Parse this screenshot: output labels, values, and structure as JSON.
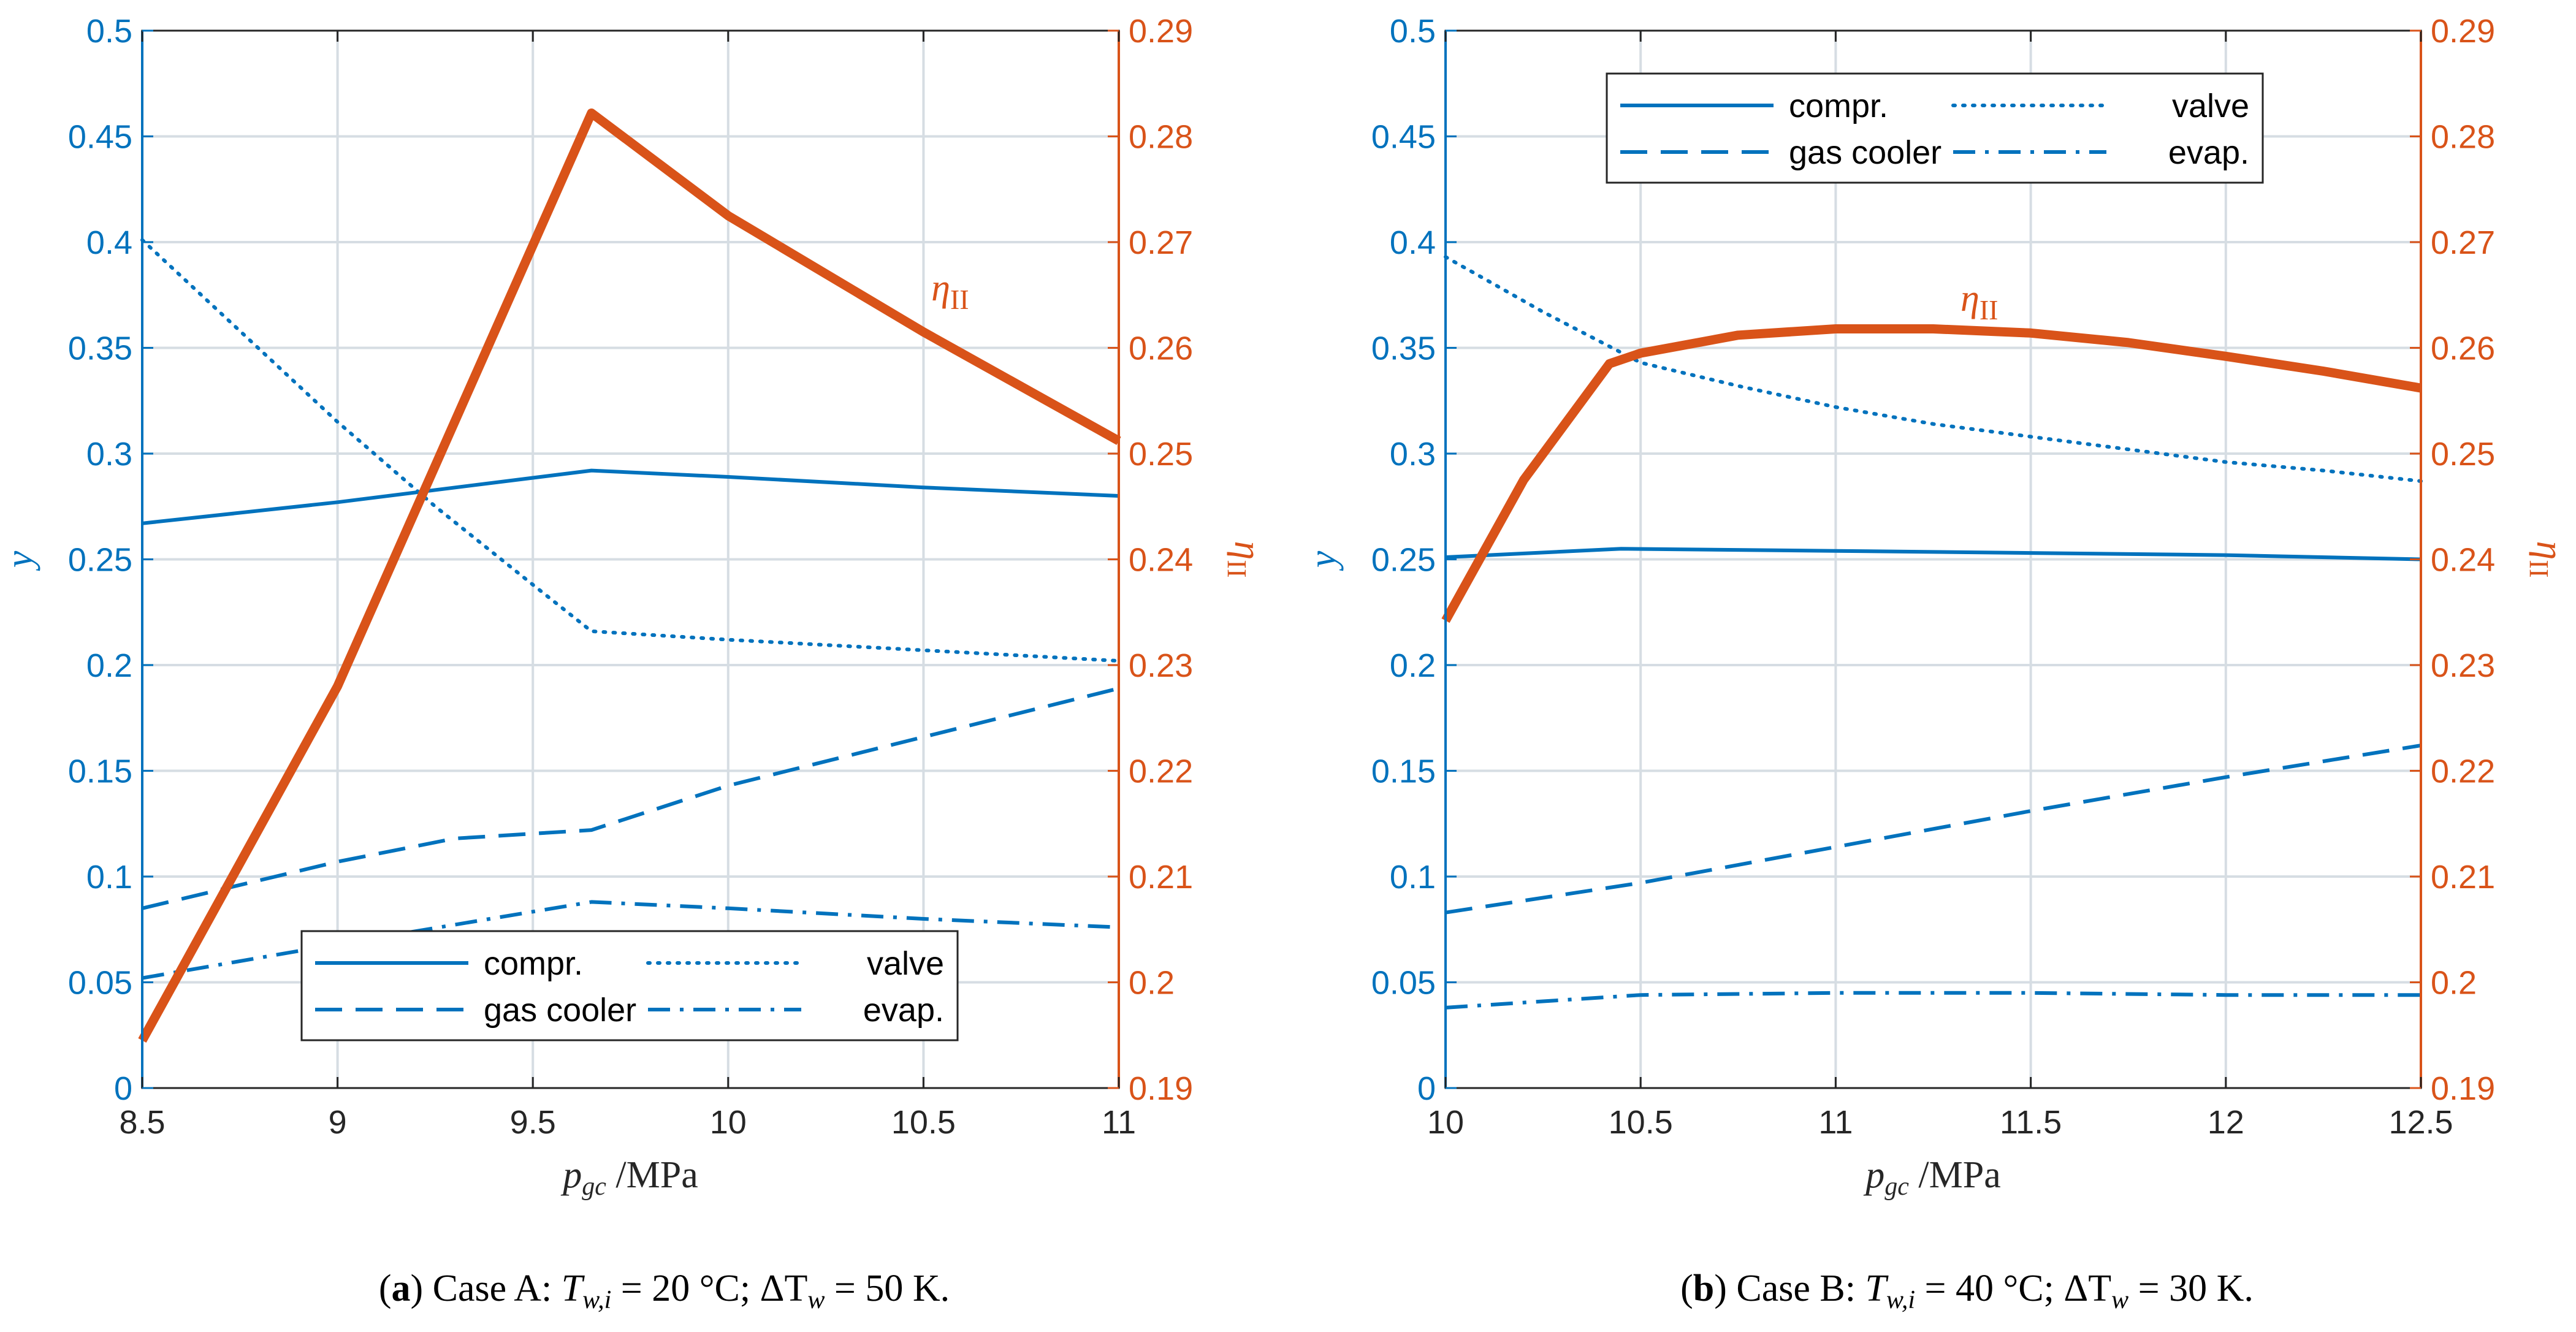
{
  "colors": {
    "left_axis": "#0072BD",
    "right_axis": "#D95319",
    "grid": "#d6dde3",
    "frame": "#000000"
  },
  "chart_data": [
    {
      "type": "line",
      "caption": {
        "letter": "(a)",
        "text": "Case A: T_{w,i} = 20 °C; ΔT_w = 50 K."
      },
      "xlabel": "p_gc /MPa",
      "ylabel_left": "y",
      "ylabel_right": "η_II",
      "xlim": [
        8.5,
        11
      ],
      "xticks": [
        8.5,
        9,
        9.5,
        10,
        10.5,
        11
      ],
      "xtick_labels": [
        "8.5",
        "9",
        "9.5",
        "10",
        "10.5",
        "11"
      ],
      "ylim_left": [
        0,
        0.5
      ],
      "yticks_left": [
        0,
        0.05,
        0.1,
        0.15,
        0.2,
        0.25,
        0.3,
        0.35,
        0.4,
        0.45,
        0.5
      ],
      "ytick_labels_left": [
        "0",
        "0.05",
        "0.1",
        "0.15",
        "0.2",
        "0.25",
        "0.3",
        "0.35",
        "0.4",
        "0.45",
        "0.5"
      ],
      "ylim_right": [
        0.19,
        0.29
      ],
      "yticks_right": [
        0.19,
        0.2,
        0.21,
        0.22,
        0.23,
        0.24,
        0.25,
        0.26,
        0.27,
        0.28,
        0.29
      ],
      "ytick_labels_right": [
        "0.19",
        "0.2",
        "0.21",
        "0.22",
        "0.23",
        "0.24",
        "0.25",
        "0.26",
        "0.27",
        "0.28",
        "0.29"
      ],
      "legend_position": "bottom-center",
      "curve_label": "η_II",
      "series": [
        {
          "name": "compr.",
          "axis": "left",
          "style": "solid",
          "x": [
            8.5,
            9.0,
            9.65,
            10.0,
            10.5,
            11.0
          ],
          "y": [
            0.267,
            0.277,
            0.292,
            0.289,
            0.284,
            0.28
          ]
        },
        {
          "name": "valve",
          "axis": "left",
          "style": "dotted",
          "x": [
            8.5,
            8.75,
            9.0,
            9.25,
            9.5,
            9.65,
            10.0,
            10.5,
            11.0
          ],
          "y": [
            0.401,
            0.358,
            0.315,
            0.275,
            0.238,
            0.216,
            0.212,
            0.207,
            0.202
          ]
        },
        {
          "name": "gas cooler",
          "axis": "left",
          "style": "dashed",
          "x": [
            8.5,
            9.0,
            9.3,
            9.65,
            10.0,
            10.5,
            11.0
          ],
          "y": [
            0.085,
            0.107,
            0.118,
            0.122,
            0.143,
            0.166,
            0.189
          ]
        },
        {
          "name": "evap.",
          "axis": "left",
          "style": "dashdot",
          "x": [
            8.5,
            9.0,
            9.65,
            10.0,
            10.5,
            11.0
          ],
          "y": [
            0.052,
            0.068,
            0.088,
            0.085,
            0.08,
            0.076
          ]
        },
        {
          "name": "η_II",
          "axis": "right",
          "style": "thick",
          "x": [
            8.5,
            9.0,
            9.65,
            10.0,
            10.5,
            11.0
          ],
          "y": [
            0.1945,
            0.228,
            0.2822,
            0.2725,
            0.2615,
            0.2512
          ]
        }
      ]
    },
    {
      "type": "line",
      "caption": {
        "letter": "(b)",
        "text": "Case B: T_{w,i} = 40 °C; ΔT_w = 30 K."
      },
      "xlabel": "p_gc /MPa",
      "ylabel_left": "y",
      "ylabel_right": "η_II",
      "xlim": [
        10,
        12.5
      ],
      "xticks": [
        10,
        10.5,
        11,
        11.5,
        12,
        12.5
      ],
      "xtick_labels": [
        "10",
        "10.5",
        "11",
        "11.5",
        "12",
        "12.5"
      ],
      "ylim_left": [
        0,
        0.5
      ],
      "yticks_left": [
        0,
        0.05,
        0.1,
        0.15,
        0.2,
        0.25,
        0.3,
        0.35,
        0.4,
        0.45,
        0.5
      ],
      "ytick_labels_left": [
        "0",
        "0.05",
        "0.1",
        "0.15",
        "0.2",
        "0.25",
        "0.3",
        "0.35",
        "0.4",
        "0.45",
        "0.5"
      ],
      "ylim_right": [
        0.19,
        0.29
      ],
      "yticks_right": [
        0.19,
        0.2,
        0.21,
        0.22,
        0.23,
        0.24,
        0.25,
        0.26,
        0.27,
        0.28,
        0.29
      ],
      "ytick_labels_right": [
        "0.19",
        "0.2",
        "0.21",
        "0.22",
        "0.23",
        "0.24",
        "0.25",
        "0.26",
        "0.27",
        "0.28",
        "0.29"
      ],
      "legend_position": "top-center",
      "curve_label": "η_II",
      "series": [
        {
          "name": "compr.",
          "axis": "left",
          "style": "solid",
          "x": [
            10,
            10.45,
            11,
            11.5,
            12,
            12.5
          ],
          "y": [
            0.251,
            0.255,
            0.254,
            0.253,
            0.252,
            0.25
          ]
        },
        {
          "name": "valve",
          "axis": "left",
          "style": "dotted",
          "x": [
            10,
            10.25,
            10.5,
            10.75,
            11,
            11.25,
            11.5,
            11.75,
            12,
            12.25,
            12.5
          ],
          "y": [
            0.393,
            0.367,
            0.343,
            0.332,
            0.322,
            0.314,
            0.308,
            0.302,
            0.296,
            0.292,
            0.287
          ]
        },
        {
          "name": "gas cooler",
          "axis": "left",
          "style": "dashed",
          "x": [
            10,
            10.5,
            11,
            11.5,
            12,
            12.5
          ],
          "y": [
            0.083,
            0.097,
            0.114,
            0.131,
            0.147,
            0.162
          ]
        },
        {
          "name": "evap.",
          "axis": "left",
          "style": "dashdot",
          "x": [
            10,
            10.25,
            10.5,
            11,
            11.5,
            12,
            12.5
          ],
          "y": [
            0.038,
            0.041,
            0.044,
            0.045,
            0.045,
            0.044,
            0.044
          ]
        },
        {
          "name": "η_II",
          "axis": "right",
          "style": "thick",
          "x": [
            10,
            10.2,
            10.42,
            10.5,
            10.75,
            11,
            11.25,
            11.5,
            11.75,
            12,
            12.25,
            12.5
          ],
          "y": [
            0.2342,
            0.2475,
            0.2585,
            0.2595,
            0.2612,
            0.2618,
            0.2618,
            0.2614,
            0.2605,
            0.2592,
            0.2578,
            0.2562
          ]
        }
      ]
    }
  ]
}
